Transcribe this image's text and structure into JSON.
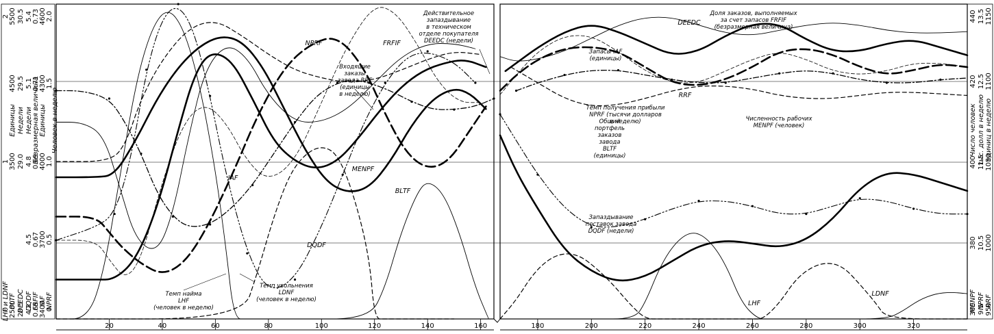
{
  "chart_data": {
    "type": "line",
    "panels": [
      {
        "x_range": [
          0,
          165
        ],
        "x_ticks": [
          "20",
          "40",
          "60",
          "80",
          "100",
          "120",
          "140",
          "160"
        ]
      },
      {
        "x_range": [
          166,
          340
        ],
        "x_ticks": [
          "180",
          "200",
          "220",
          "240",
          "260",
          "280",
          "300",
          "320"
        ]
      }
    ],
    "grid": "horizontal-reference-lines",
    "left_axes": [
      {
        "var": "LHF и LDNF",
        "unit": "",
        "ticks": [
          "0",
          "1",
          "2"
        ]
      },
      {
        "var": "BLTF",
        "unit": "Единицы",
        "ticks": [
          "2500",
          "3500",
          "4500",
          "5500"
        ]
      },
      {
        "var": "DEEDC",
        "unit": "Недели",
        "ticks": [
          "28.5",
          "29.0",
          "29.5",
          "30.5"
        ]
      },
      {
        "var": "DQDF",
        "unit": "Недели",
        "ticks": [
          "4.2",
          "4.5",
          "4.8",
          "5.1",
          "5.4"
        ]
      },
      {
        "var": "FRFIF",
        "unit": "Безразмерная величина",
        "ticks": [
          "0.65",
          "0.67",
          "0.69",
          "0.71",
          "0.73"
        ]
      },
      {
        "var": "IAF",
        "unit": "Единицы",
        "ticks": [
          "3400",
          "3700",
          "4000",
          "4300",
          "4600"
        ]
      },
      {
        "var": "NPRF",
        "unit": "",
        "ticks": [
          "0",
          "0.5",
          "1.0",
          "1.5",
          "2.0"
        ]
      },
      {
        "var": "",
        "unit": "Человек в неделю",
        "ticks": []
      }
    ],
    "right_axes": [
      {
        "var": "MENPF",
        "unit": "Число человек",
        "ticks": [
          "360",
          "380",
          "400",
          "420",
          "440"
        ]
      },
      {
        "var": "NPRF",
        "unit": "тыс. долл в неделю",
        "ticks": [
          "9.5",
          "10.5",
          "11.5",
          "12.5",
          "13.5"
        ]
      },
      {
        "var": "RRF",
        "unit": "единиц в неделю",
        "ticks": [
          "950",
          "1000",
          "1050",
          "1100",
          "1150"
        ]
      }
    ],
    "series": [
      {
        "name": "MENPF",
        "style": "thick-solid",
        "x": [
          0,
          15,
          22,
          30,
          38,
          46,
          52,
          58,
          66,
          74,
          82,
          90,
          98,
          106,
          114,
          122,
          130,
          138,
          146,
          154,
          162,
          168,
          172,
          180,
          190,
          200,
          210,
          220,
          230,
          240,
          250,
          260,
          270,
          280,
          290,
          300,
          310,
          320,
          330,
          340
        ],
        "y": [
          370,
          370,
          370,
          375,
          388,
          408,
          422,
          428,
          426,
          416,
          405,
          400,
          398,
          400,
          406,
          413,
          419,
          423,
          425,
          426,
          424,
          423,
          425,
          429,
          433,
          435,
          433,
          430,
          427,
          428,
          432,
          435,
          435,
          431,
          428,
          428,
          430,
          431,
          429,
          427
        ]
      },
      {
        "name": "BLTF",
        "style": "thick-solid",
        "x": [
          0,
          15,
          22,
          30,
          38,
          46,
          54,
          62,
          70,
          78,
          86,
          94,
          102,
          110,
          118,
          126,
          134,
          142,
          150,
          156,
          162,
          166,
          172,
          180,
          190,
          200,
          210,
          220,
          230,
          240,
          250,
          260,
          270,
          280,
          290,
          300,
          310,
          320,
          330,
          340
        ],
        "y": [
          3850,
          3850,
          3870,
          4200,
          4600,
          4900,
          5100,
          5200,
          5150,
          4900,
          4500,
          4100,
          3800,
          3700,
          3750,
          4000,
          4350,
          4600,
          4700,
          4650,
          4500,
          4250,
          3900,
          3550,
          3150,
          2950,
          2850,
          2900,
          3050,
          3200,
          3250,
          3220,
          3180,
          3250,
          3450,
          3750,
          3900,
          3880,
          3800,
          3720
        ]
      },
      {
        "name": "DEEDC",
        "style": "thick-long-dash",
        "x": [
          0,
          15,
          20,
          25,
          32,
          40,
          48,
          56,
          66,
          76,
          86,
          96,
          106,
          116,
          124,
          132,
          140,
          148,
          156,
          162,
          166,
          172,
          180,
          190,
          200,
          210,
          220,
          230,
          240,
          250,
          260,
          270,
          280,
          290,
          300,
          310,
          320,
          330,
          340
        ],
        "y": [
          29.15,
          29.15,
          29.05,
          28.95,
          28.85,
          28.78,
          28.85,
          29.05,
          29.4,
          29.8,
          30.1,
          30.25,
          30.3,
          30.1,
          29.8,
          29.55,
          29.45,
          29.5,
          29.7,
          29.85,
          29.95,
          30.05,
          30.15,
          30.22,
          30.23,
          30.2,
          30.1,
          30.0,
          29.98,
          30.02,
          30.1,
          30.2,
          30.22,
          30.18,
          30.1,
          30.05,
          30.08,
          30.12,
          30.1
        ]
      },
      {
        "name": "NPRF",
        "style": "dash-dot",
        "x": [
          0,
          10,
          20,
          26,
          32,
          38,
          44,
          50,
          58,
          66,
          74,
          82,
          90,
          98,
          106,
          112,
          118,
          126,
          134,
          142,
          150,
          158,
          165,
          172,
          180,
          190,
          200,
          210,
          220,
          230,
          240,
          250,
          260,
          270,
          280,
          290,
          300,
          310,
          320,
          330,
          340
        ],
        "y": [
          1.45,
          1.45,
          1.4,
          1.25,
          1.05,
          0.8,
          0.65,
          0.58,
          0.6,
          0.7,
          0.85,
          1.05,
          1.25,
          1.42,
          1.5,
          1.52,
          1.5,
          1.45,
          1.38,
          1.33,
          1.33,
          1.35,
          1.4,
          1.45,
          1.5,
          1.55,
          1.58,
          1.58,
          1.55,
          1.52,
          1.5,
          1.5,
          1.53,
          1.56,
          1.58,
          1.56,
          1.52,
          1.5,
          1.5,
          1.52,
          1.53
        ]
      },
      {
        "name": "RRF",
        "style": "dashed",
        "x": [
          0,
          20,
          26,
          32,
          40,
          50,
          60,
          70,
          80,
          90,
          100,
          110,
          120,
          130,
          140,
          150,
          160,
          170,
          180,
          190,
          200,
          210,
          220,
          230,
          240,
          250,
          260,
          270,
          280,
          290,
          300,
          310,
          320,
          330,
          340
        ],
        "y": [
          1050,
          1050,
          1060,
          1090,
          1115,
          1135,
          1140,
          1130,
          1118,
          1108,
          1103,
          1100,
          1102,
          1108,
          1115,
          1120,
          1118,
          1110,
          1100,
          1090,
          1085,
          1086,
          1090,
          1095,
          1098,
          1098,
          1096,
          1092,
          1090,
          1090,
          1092,
          1094,
          1094,
          1093,
          1092
        ]
      },
      {
        "name": "DQDF",
        "style": "dash-dot-dot",
        "x": [
          0,
          15,
          22,
          28,
          34,
          40,
          46,
          52,
          58,
          64,
          72,
          80,
          90,
          100,
          108,
          116,
          124,
          132,
          140,
          150,
          158,
          166,
          172,
          180,
          190,
          200,
          210,
          220,
          230,
          240,
          250,
          260,
          270,
          280,
          290,
          300,
          310,
          320,
          330,
          340
        ],
        "y": [
          4.5,
          4.55,
          4.6,
          4.8,
          5.15,
          5.35,
          5.4,
          5.3,
          5.05,
          4.75,
          4.45,
          4.3,
          4.35,
          4.55,
          4.75,
          4.95,
          5.1,
          5.2,
          5.22,
          5.18,
          5.1,
          4.98,
          4.88,
          4.75,
          4.62,
          4.55,
          4.55,
          4.58,
          4.62,
          4.65,
          4.65,
          4.63,
          4.6,
          4.6,
          4.63,
          4.66,
          4.65,
          4.62,
          4.6,
          4.6
        ]
      },
      {
        "name": "FRFIF",
        "style": "thin-dashed",
        "x": [
          0,
          15,
          20,
          26,
          32,
          40,
          48,
          56,
          64,
          72,
          80,
          90,
          100,
          110,
          120,
          128,
          136,
          144,
          152,
          160,
          166,
          172,
          180,
          190,
          200,
          210,
          220,
          230,
          240,
          250,
          260,
          270,
          280,
          290,
          300,
          310,
          320,
          330,
          340
        ],
        "y": [
          0.67,
          0.67,
          0.665,
          0.66,
          0.665,
          0.685,
          0.7,
          0.705,
          0.7,
          0.69,
          0.685,
          0.69,
          0.705,
          0.72,
          0.73,
          0.728,
          0.72,
          0.71,
          0.705,
          0.705,
          0.707,
          0.712,
          0.718,
          0.722,
          0.722,
          0.718,
          0.713,
          0.71,
          0.71,
          0.713,
          0.716,
          0.718,
          0.716,
          0.713,
          0.712,
          0.713,
          0.715,
          0.715,
          0.714
        ]
      },
      {
        "name": "IAF",
        "style": "thin-solid",
        "x": [
          0,
          10,
          18,
          24,
          30,
          38,
          44,
          50,
          56,
          64,
          72,
          80,
          90,
          100,
          110,
          120,
          130,
          140,
          150,
          158,
          166,
          172,
          180,
          190,
          200,
          210,
          220,
          230,
          240,
          250,
          260,
          270,
          280,
          290,
          300,
          310,
          320,
          330,
          340
        ],
        "y": [
          4150,
          4150,
          4100,
          3900,
          3700,
          3650,
          3800,
          4100,
          4350,
          4450,
          4400,
          4250,
          4150,
          4150,
          4200,
          4300,
          4400,
          4450,
          4450,
          4430,
          4400,
          4380,
          4390,
          4420,
          4470,
          4520,
          4550,
          4550,
          4520,
          4490,
          4480,
          4500,
          4520,
          4530,
          4520,
          4500,
          4490,
          4490,
          4495
        ]
      },
      {
        "name": "LHF",
        "style": "thin-solid",
        "x": [
          0,
          12,
          18,
          24,
          30,
          36,
          42,
          48,
          54,
          60,
          64,
          67,
          72,
          90,
          118,
          124,
          130,
          136,
          140,
          146,
          152,
          158,
          163,
          166,
          200,
          216,
          220,
          226,
          232,
          238,
          244,
          250,
          256,
          262,
          266,
          290,
          310,
          316,
          322,
          328,
          334,
          340
        ],
        "y": [
          0,
          0,
          0.3,
          0.9,
          1.5,
          1.85,
          1.98,
          1.85,
          1.5,
          0.95,
          0.45,
          0,
          0,
          0,
          0,
          0.2,
          0.55,
          0.8,
          0.88,
          0.8,
          0.55,
          0.2,
          0,
          0,
          0,
          0,
          0.1,
          0.35,
          0.5,
          0.56,
          0.5,
          0.35,
          0.1,
          0,
          0,
          0,
          0,
          0.05,
          0.12,
          0.16,
          0.17,
          0.16
        ]
      },
      {
        "name": "LDNF",
        "style": "dashed",
        "x": [
          0,
          70,
          76,
          82,
          88,
          94,
          100,
          106,
          112,
          118,
          120,
          124,
          130,
          136,
          150,
          166,
          172,
          178,
          184,
          190,
          196,
          202,
          208,
          214,
          220,
          226,
          260,
          264,
          270,
          276,
          282,
          288,
          294,
          300,
          306,
          310,
          340
        ],
        "y": [
          0,
          0,
          0.3,
          0.65,
          0.92,
          1.05,
          1.1,
          1.05,
          0.8,
          0.4,
          0,
          0,
          0,
          0,
          0,
          0,
          0.12,
          0.28,
          0.38,
          0.42,
          0.4,
          0.32,
          0.22,
          0.1,
          0,
          0,
          0,
          0,
          0.1,
          0.25,
          0.33,
          0.36,
          0.33,
          0.22,
          0.1,
          0,
          0
        ]
      }
    ],
    "annotations": [
      {
        "target": "DEEDC",
        "lines": [
          "Действительное",
          "запаздывание",
          "в техническом",
          "отделе покупателя",
          "DEEDC (недели)"
        ]
      },
      {
        "target": "RRF",
        "lines": [
          "Входящие",
          "заказы",
          "завода RRF",
          "(единицы",
          "в неделю)"
        ]
      },
      {
        "target": "NPRF",
        "lines": [
          "NPRF"
        ]
      },
      {
        "target": "FRFIF",
        "lines": [
          "FRFIF"
        ]
      },
      {
        "target": "MENPF",
        "lines": [
          "MENPF"
        ]
      },
      {
        "target": "IAF",
        "lines": [
          "IAF"
        ]
      },
      {
        "target": "BLTF",
        "lines": [
          "BLTF"
        ]
      },
      {
        "target": "DQDF",
        "lines": [
          "DQDF"
        ]
      },
      {
        "target": "LHF",
        "lines": [
          "Темп найма",
          "LHF",
          "(человек в неделю)"
        ]
      },
      {
        "target": "LDNF",
        "lines": [
          "Темп увольнения",
          "LDNF",
          "(человек в неделю)"
        ]
      },
      {
        "target": "DEEDC",
        "lines": [
          "DEEDC"
        ]
      },
      {
        "target": "FRFIF",
        "lines": [
          "Доля заказов, выполняемых",
          "за счет запасов FRFIF",
          "(безразмерная величина)"
        ]
      },
      {
        "target": "IAF",
        "lines": [
          "Запасы IAF",
          "(единицы)"
        ]
      },
      {
        "target": "RRF",
        "lines": [
          "RRF"
        ]
      },
      {
        "target": "NPRF",
        "lines": [
          "Темп получения прибыли",
          "NPRF (тысячи долларов",
          "в неделю)"
        ]
      },
      {
        "target": "MENPF",
        "lines": [
          "Численность рабочих",
          "MENPF (человек)"
        ]
      },
      {
        "target": "BLTF",
        "lines": [
          "Общий",
          "портфель",
          "заказов",
          "завода",
          "BLTF",
          "(единицы)"
        ]
      },
      {
        "target": "DQDF",
        "lines": [
          "Запаздывание",
          "поставок завода",
          "DQDF (недели)"
        ]
      },
      {
        "target": "LHF",
        "lines": [
          "LHF"
        ]
      },
      {
        "target": "LDNF",
        "lines": [
          "LDNF"
        ]
      }
    ]
  }
}
